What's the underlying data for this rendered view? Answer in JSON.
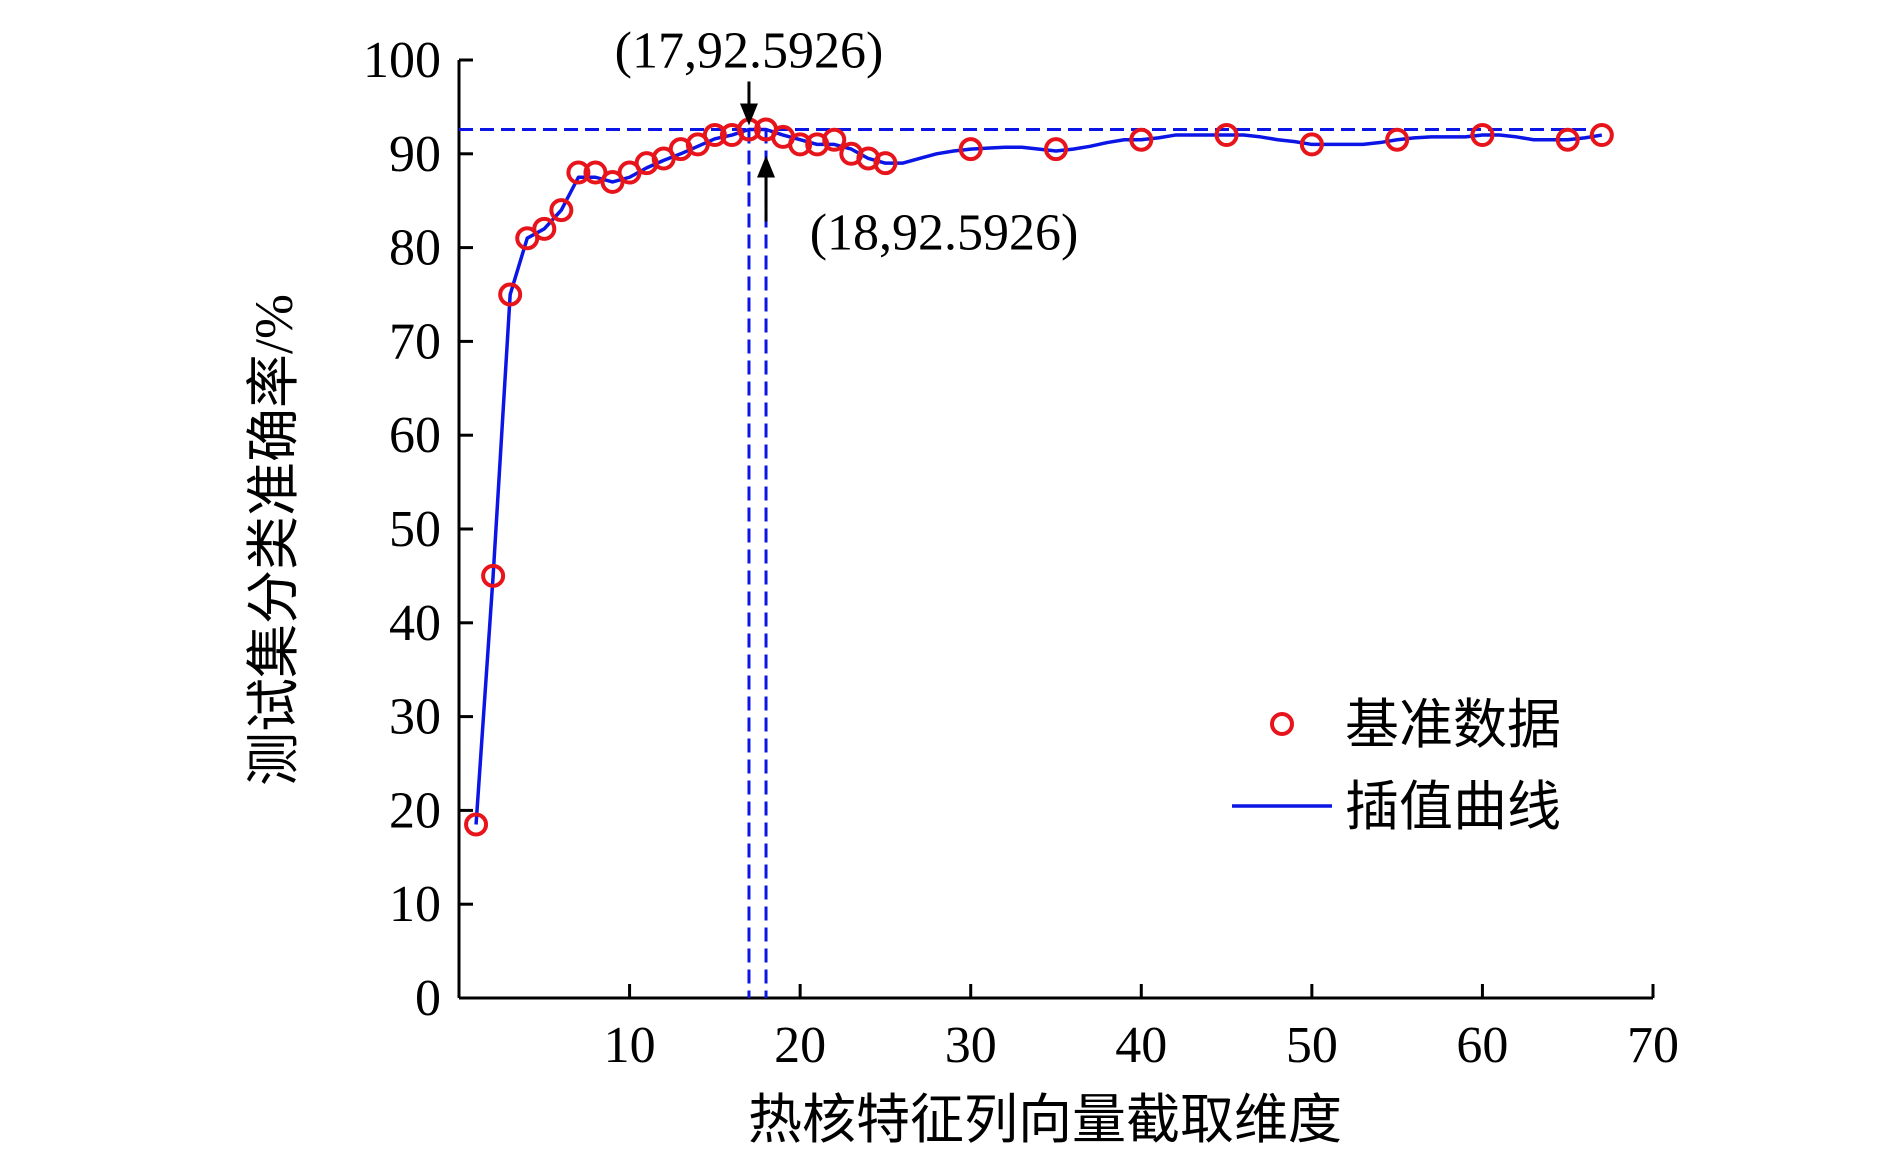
{
  "chart_data": {
    "type": "line",
    "title": "",
    "xlabel": "热核特征列向量截取维度",
    "ylabel": "测试集分类准确率/%",
    "xlim": [
      0,
      70
    ],
    "ylim": [
      0,
      100
    ],
    "xticks": [
      10,
      20,
      30,
      40,
      50,
      60,
      70
    ],
    "yticks": [
      0,
      10,
      20,
      30,
      40,
      50,
      60,
      70,
      80,
      90,
      100
    ],
    "grid": false,
    "legend_position": "bottom-right",
    "series": [
      {
        "name": "基准数据",
        "kind": "scatter",
        "marker": "circle",
        "color": "#e8141c",
        "x": [
          1,
          2,
          3,
          4,
          5,
          6,
          7,
          8,
          9,
          10,
          11,
          12,
          13,
          14,
          15,
          16,
          17,
          18,
          19,
          20,
          21,
          22,
          23,
          24,
          25,
          30,
          35,
          40,
          45,
          50,
          55,
          60,
          65,
          67
        ],
        "y": [
          18.5,
          45.0,
          75.0,
          81.0,
          82.0,
          84.0,
          88.0,
          88.0,
          87.0,
          88.0,
          89.0,
          89.5,
          90.5,
          91.0,
          92.0,
          92.0,
          92.5926,
          92.5926,
          91.8,
          91.0,
          91.0,
          91.5,
          90.0,
          89.5,
          89.0,
          90.5,
          90.5,
          91.5,
          92.0,
          91.0,
          91.5,
          92.0,
          91.5,
          92.0
        ]
      },
      {
        "name": "插值曲线",
        "kind": "line",
        "color": "#0b16e6",
        "x": [
          1,
          2,
          3,
          4,
          5,
          6,
          7,
          8,
          9,
          10,
          11,
          12,
          13,
          14,
          15,
          16,
          17,
          18,
          19,
          20,
          21,
          22,
          23,
          24,
          25,
          26,
          27,
          28,
          29,
          30,
          31,
          32,
          33,
          34,
          35,
          36,
          37,
          38,
          39,
          40,
          41,
          42,
          43,
          44,
          45,
          46,
          47,
          48,
          49,
          50,
          51,
          52,
          53,
          54,
          55,
          56,
          57,
          58,
          59,
          60,
          61,
          62,
          63,
          64,
          65,
          66,
          67
        ],
        "y": [
          18.5,
          45.0,
          75.0,
          81.0,
          82.0,
          84.0,
          87.5,
          87.5,
          87.0,
          87.5,
          88.5,
          89.3,
          90.0,
          90.8,
          91.6,
          92.0,
          92.5926,
          92.5926,
          92.0,
          91.5,
          91.0,
          91.0,
          90.5,
          89.5,
          89.0,
          89.0,
          89.5,
          90.0,
          90.3,
          90.5,
          90.6,
          90.7,
          90.7,
          90.5,
          90.3,
          90.5,
          90.8,
          91.2,
          91.5,
          91.5,
          91.7,
          92.0,
          92.0,
          92.0,
          92.0,
          92.0,
          91.8,
          91.5,
          91.3,
          91.0,
          91.0,
          91.0,
          91.0,
          91.2,
          91.5,
          91.7,
          91.8,
          91.8,
          91.8,
          92.0,
          92.0,
          91.8,
          91.5,
          91.5,
          91.5,
          91.7,
          92.0
        ]
      }
    ],
    "reference_lines": {
      "horizontal_y": 92.5926,
      "vertical_x": [
        17,
        18
      ],
      "color": "#0b16e6",
      "style": "dashed"
    },
    "annotations": [
      {
        "text": "(17,92.5926)",
        "x": 17,
        "y": 92.5926
      },
      {
        "text": "(18,92.5926)",
        "x": 18,
        "y": 92.5926
      }
    ]
  }
}
